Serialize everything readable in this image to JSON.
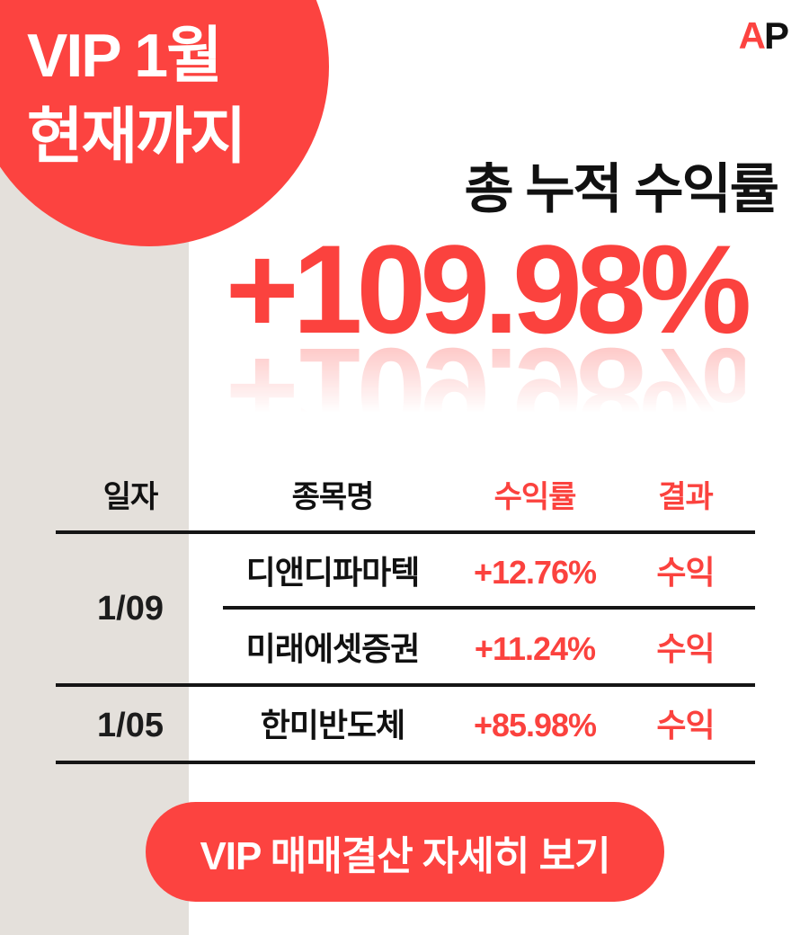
{
  "colors": {
    "accent": "#FC4340",
    "band": "#E4E0DB",
    "ink": "#111111",
    "white": "#FFFFFF"
  },
  "badge": {
    "line1": "VIP 1월",
    "line2": "현재까지"
  },
  "logo": {
    "a": "A",
    "p": "P"
  },
  "headline": {
    "title": "총 누적 수익률",
    "value": "+109.98%"
  },
  "table": {
    "headers": [
      "일자",
      "종목명",
      "수익률",
      "결과"
    ],
    "date_groups": [
      {
        "date": "1/09"
      },
      {
        "date": "1/05"
      }
    ],
    "rows": [
      {
        "name": "디앤디파마텍",
        "return": "+12.76%",
        "result": "수익"
      },
      {
        "name": "미래에셋증권",
        "return": "+11.24%",
        "result": "수익"
      },
      {
        "name": "한미반도체",
        "return": "+85.98%",
        "result": "수익"
      }
    ]
  },
  "cta": {
    "label": "VIP 매매결산 자세히 보기"
  }
}
